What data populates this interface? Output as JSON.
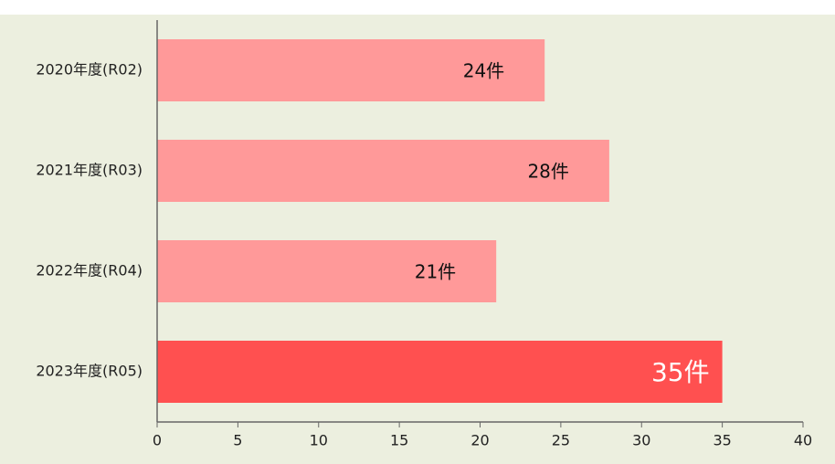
{
  "chart_data": {
    "type": "bar",
    "orientation": "horizontal",
    "categories": [
      "2020年度(R02)",
      "2021年度(R03)",
      "2022年度(R04)",
      "2023年度(R05)"
    ],
    "values": [
      24,
      28,
      21,
      35
    ],
    "value_labels": [
      "24件",
      "28件",
      "21件",
      "35件"
    ],
    "colors": [
      "#ff9999",
      "#ff9999",
      "#ff9999",
      "#ff5050"
    ],
    "label_colors": [
      "#111111",
      "#111111",
      "#111111",
      "#ffffff"
    ],
    "xlim": [
      0,
      40
    ],
    "xticks": [
      0,
      5,
      10,
      15,
      20,
      25,
      30,
      35,
      40
    ]
  }
}
